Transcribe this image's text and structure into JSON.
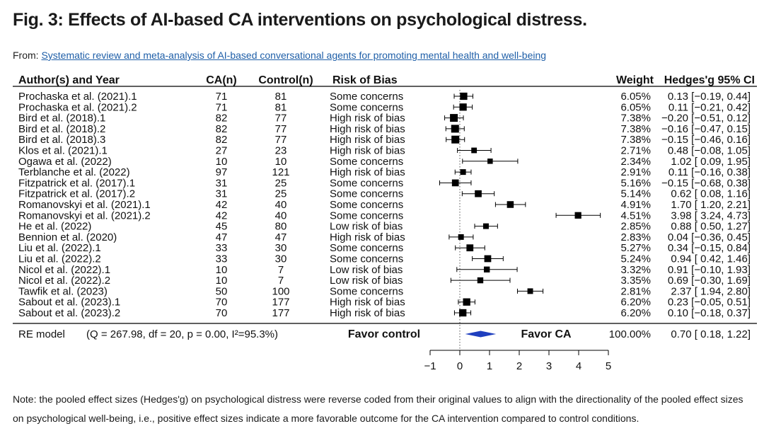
{
  "page": {
    "title": "Fig. 3: Effects of AI-based CA interventions on psychological distress.",
    "from_prefix": "From: ",
    "from_link": "Systematic review and meta-analysis of AI-based conversational agents for promoting mental health and well-being",
    "note": "Note: the pooled effect sizes (Hedges'g) on psychological distress were reverse coded from their original values to align with the directionality of the pooled effect sizes on psychological well-being, i.e., positive effect sizes indicate a more favorable outcome for the CA intervention compared to control conditions."
  },
  "colors": {
    "summary": "#1f3fbf",
    "marker": "#000000",
    "link": "#1f5fa8"
  },
  "chart_data": {
    "type": "forest",
    "headers": {
      "author": "Author(s) and Year",
      "ca": "CA(n)",
      "control": "Control(n)",
      "bias": "Risk of Bias",
      "weight": "Weight",
      "ci": "Hedges'g 95% CI"
    },
    "xlim": [
      -1,
      5
    ],
    "ticks": [
      -1,
      0,
      1,
      2,
      3,
      4,
      5
    ],
    "studies": [
      {
        "author": "Prochaska et al. (2021).1",
        "ca": "71",
        "control": "81",
        "bias": "Some concerns",
        "weight": "6.05%",
        "g": 0.13,
        "lo": -0.19,
        "hi": 0.44,
        "ci_text": "0.13 [−0.19, 0.44]"
      },
      {
        "author": "Prochaska et al. (2021).2",
        "ca": "71",
        "control": "81",
        "bias": "Some concerns",
        "weight": "6.05%",
        "g": 0.11,
        "lo": -0.21,
        "hi": 0.42,
        "ci_text": "0.11 [−0.21, 0.42]"
      },
      {
        "author": "Bird et al. (2018).1",
        "ca": "82",
        "control": "77",
        "bias": "High risk of bias",
        "weight": "7.38%",
        "g": -0.2,
        "lo": -0.51,
        "hi": 0.12,
        "ci_text": "−0.20 [−0.51, 0.12]"
      },
      {
        "author": "Bird et al. (2018).2",
        "ca": "82",
        "control": "77",
        "bias": "High risk of bias",
        "weight": "7.38%",
        "g": -0.16,
        "lo": -0.47,
        "hi": 0.15,
        "ci_text": "−0.16 [−0.47, 0.15]"
      },
      {
        "author": "Bird et al. (2018).3",
        "ca": "82",
        "control": "77",
        "bias": "High risk of bias",
        "weight": "7.38%",
        "g": -0.15,
        "lo": -0.46,
        "hi": 0.16,
        "ci_text": "−0.15 [−0.46, 0.16]"
      },
      {
        "author": "Klos et al. (2021).1",
        "ca": "27",
        "control": "23",
        "bias": "High risk of bias",
        "weight": "2.71%",
        "g": 0.48,
        "lo": -0.08,
        "hi": 1.05,
        "ci_text": "0.48 [−0.08, 1.05]"
      },
      {
        "author": "Ogawa et al. (2022)",
        "ca": "10",
        "control": "10",
        "bias": "Some concerns",
        "weight": "2.34%",
        "g": 1.02,
        "lo": 0.09,
        "hi": 1.95,
        "ci_text": "1.02 [ 0.09, 1.95]"
      },
      {
        "author": "Terblanche et al. (2022)",
        "ca": "97",
        "control": "121",
        "bias": "High risk of bias",
        "weight": "2.91%",
        "g": 0.11,
        "lo": -0.16,
        "hi": 0.38,
        "ci_text": "0.11 [−0.16, 0.38]"
      },
      {
        "author": "Fitzpatrick et al. (2017).1",
        "ca": "31",
        "control": "25",
        "bias": "Some concerns",
        "weight": "5.16%",
        "g": -0.15,
        "lo": -0.68,
        "hi": 0.38,
        "ci_text": "−0.15 [−0.68, 0.38]"
      },
      {
        "author": "Fitzpatrick et al. (2017).2",
        "ca": "31",
        "control": "25",
        "bias": "Some concerns",
        "weight": "5.14%",
        "g": 0.62,
        "lo": 0.08,
        "hi": 1.16,
        "ci_text": "0.62 [ 0.08, 1.16]"
      },
      {
        "author": "Romanovskyi et al. (2021).1",
        "ca": "42",
        "control": "40",
        "bias": "Some concerns",
        "weight": "4.91%",
        "g": 1.7,
        "lo": 1.2,
        "hi": 2.21,
        "ci_text": "1.70 [ 1.20, 2.21]"
      },
      {
        "author": "Romanovskyi et al. (2021).2",
        "ca": "42",
        "control": "40",
        "bias": "Some concerns",
        "weight": "4.51%",
        "g": 3.98,
        "lo": 3.24,
        "hi": 4.73,
        "ci_text": "3.98 [ 3.24, 4.73]"
      },
      {
        "author": "He et al. (2022)",
        "ca": "45",
        "control": "80",
        "bias": "Low risk of bias",
        "weight": "2.85%",
        "g": 0.88,
        "lo": 0.5,
        "hi": 1.27,
        "ci_text": "0.88 [ 0.50, 1.27]"
      },
      {
        "author": "Bennion et al. (2020)",
        "ca": "47",
        "control": "47",
        "bias": "High risk of bias",
        "weight": "2.83%",
        "g": 0.04,
        "lo": -0.36,
        "hi": 0.45,
        "ci_text": "0.04 [−0.36, 0.45]"
      },
      {
        "author": "Liu et al. (2022).1",
        "ca": "33",
        "control": "30",
        "bias": "Some concerns",
        "weight": "5.27%",
        "g": 0.34,
        "lo": -0.15,
        "hi": 0.84,
        "ci_text": "0.34 [−0.15, 0.84]"
      },
      {
        "author": "Liu et al. (2022).2",
        "ca": "33",
        "control": "30",
        "bias": "Some concerns",
        "weight": "5.24%",
        "g": 0.94,
        "lo": 0.42,
        "hi": 1.46,
        "ci_text": "0.94 [ 0.42, 1.46]"
      },
      {
        "author": "Nicol et al. (2022).1",
        "ca": "10",
        "control": "7",
        "bias": "Low risk of bias",
        "weight": "3.32%",
        "g": 0.91,
        "lo": -0.1,
        "hi": 1.93,
        "ci_text": "0.91 [−0.10, 1.93]"
      },
      {
        "author": "Nicol et al. (2022).2",
        "ca": "10",
        "control": "7",
        "bias": "Low risk of bias",
        "weight": "3.35%",
        "g": 0.69,
        "lo": -0.3,
        "hi": 1.69,
        "ci_text": "0.69 [−0.30, 1.69]"
      },
      {
        "author": "Tawfik et al. (2023)",
        "ca": "50",
        "control": "100",
        "bias": "Some concerns",
        "weight": "2.81%",
        "g": 2.37,
        "lo": 1.94,
        "hi": 2.8,
        "ci_text": "2.37 [ 1.94, 2.80]"
      },
      {
        "author": "Sabout et al. (2023).1",
        "ca": "70",
        "control": "177",
        "bias": "High risk of bias",
        "weight": "6.20%",
        "g": 0.23,
        "lo": -0.05,
        "hi": 0.51,
        "ci_text": "0.23 [−0.05, 0.51]"
      },
      {
        "author": "Sabout et al. (2023).2",
        "ca": "70",
        "control": "177",
        "bias": "High risk of bias",
        "weight": "6.20%",
        "g": 0.1,
        "lo": -0.18,
        "hi": 0.37,
        "ci_text": "0.10 [−0.18, 0.37]"
      }
    ],
    "summary": {
      "label": "RE model",
      "stats": "(Q = 267.98, df = 20, p = 0.00, I²=95.3%)",
      "favor_left": "Favor control",
      "favor_right": "Favor CA",
      "weight": "100.00%",
      "g": 0.7,
      "lo": 0.18,
      "hi": 1.22,
      "ci_text": "0.70 [ 0.18, 1.22]"
    }
  }
}
